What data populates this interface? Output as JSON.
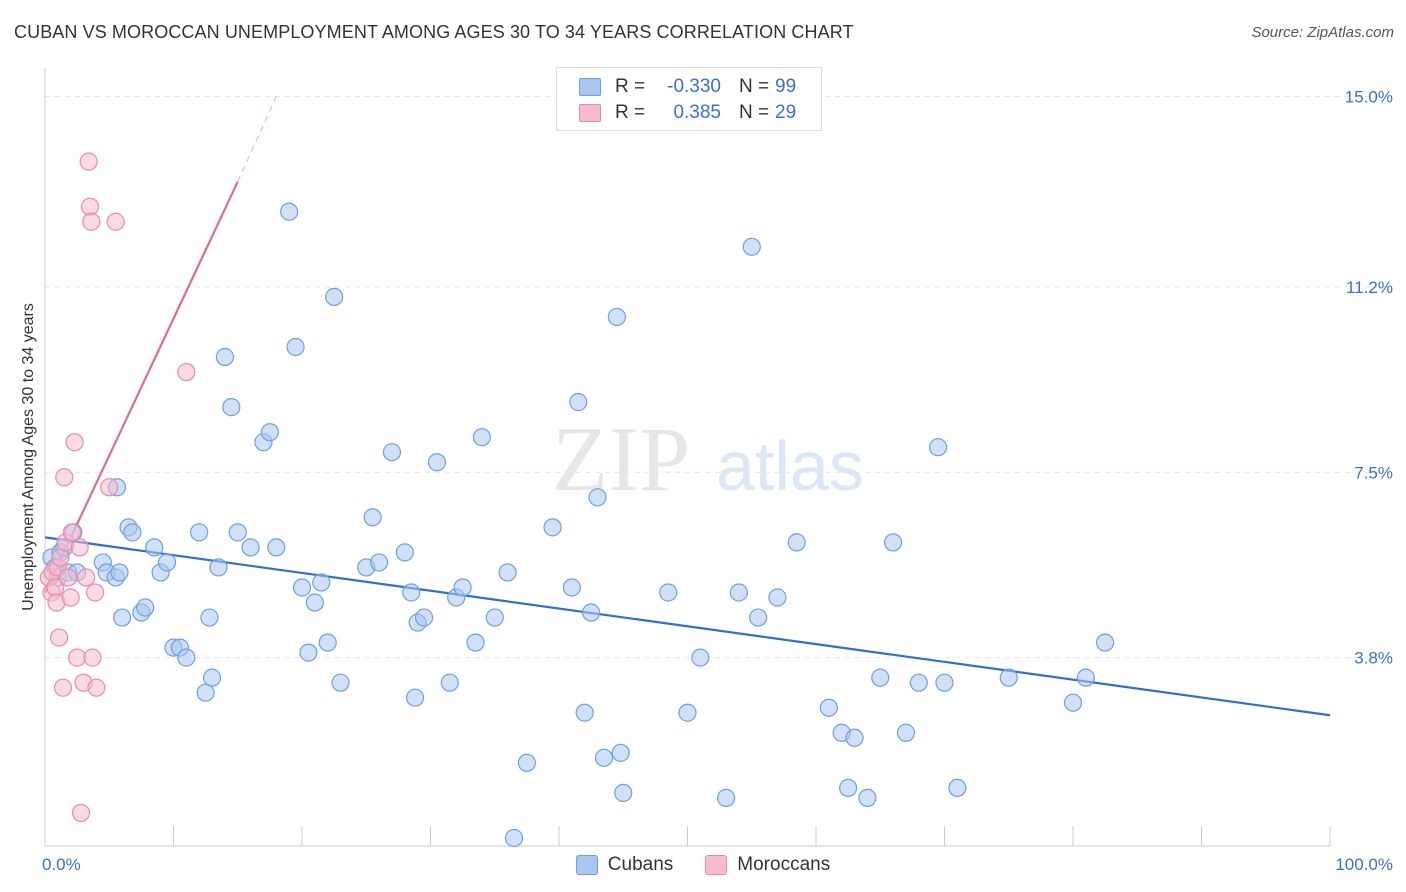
{
  "header": {
    "title": "CUBAN VS MOROCCAN UNEMPLOYMENT AMONG AGES 30 TO 34 YEARS CORRELATION CHART",
    "source": "Source: ZipAtlas.com"
  },
  "watermark": {
    "part1": "ZIP",
    "part2": "atlas"
  },
  "legend": {
    "r_label": "R =",
    "n_label": "N =",
    "rows": [
      {
        "series": "Cubans",
        "r": "-0.330",
        "n": "99",
        "color": "#a9c6f0"
      },
      {
        "series": "Moroccans",
        "r": "0.385",
        "n": "29",
        "color": "#f6bccd"
      }
    ]
  },
  "chart_data": {
    "type": "scatter",
    "title": "CUBAN VS MOROCCAN UNEMPLOYMENT AMONG AGES 30 TO 34 YEARS CORRELATION CHART",
    "xlabel": "",
    "ylabel": "Unemployment Among Ages 30 to 34 years",
    "xlim": [
      0,
      100
    ],
    "ylim": [
      0,
      15.5
    ],
    "x_tick_labels": [
      "0.0%",
      "100.0%"
    ],
    "y_ticks": [
      {
        "value": 3.8,
        "label": "3.8%"
      },
      {
        "value": 7.5,
        "label": "7.5%"
      },
      {
        "value": 11.2,
        "label": "11.2%"
      },
      {
        "value": 15.0,
        "label": "15.0%"
      }
    ],
    "grid": true,
    "legend_position": "top-center",
    "series": [
      {
        "name": "Cubans",
        "color": "#a9c6f0",
        "stroke": "#6f9ee0",
        "trend": {
          "x": [
            0,
            100
          ],
          "y": [
            6.2,
            2.65
          ],
          "color": "#2f6fd1"
        },
        "points": [
          [
            0.5,
            5.8
          ],
          [
            0.8,
            5.6
          ],
          [
            1.0,
            5.4
          ],
          [
            1.2,
            5.9
          ],
          [
            1.5,
            6.0
          ],
          [
            1.8,
            5.5
          ],
          [
            2.2,
            6.3
          ],
          [
            2.5,
            5.5
          ],
          [
            4.5,
            5.7
          ],
          [
            4.8,
            5.5
          ],
          [
            5.5,
            5.4
          ],
          [
            5.8,
            5.5
          ],
          [
            5.6,
            7.2
          ],
          [
            6.0,
            4.6
          ],
          [
            6.5,
            6.4
          ],
          [
            6.8,
            6.3
          ],
          [
            7.5,
            4.7
          ],
          [
            7.8,
            4.8
          ],
          [
            8.5,
            6.0
          ],
          [
            9.0,
            5.5
          ],
          [
            9.5,
            5.7
          ],
          [
            10.0,
            4.0
          ],
          [
            10.5,
            4.0
          ],
          [
            11.0,
            3.8
          ],
          [
            12.0,
            6.3
          ],
          [
            12.5,
            3.1
          ],
          [
            12.8,
            4.6
          ],
          [
            13.0,
            3.4
          ],
          [
            13.5,
            5.6
          ],
          [
            14.0,
            9.8
          ],
          [
            14.5,
            8.8
          ],
          [
            15.0,
            6.3
          ],
          [
            16.0,
            6.0
          ],
          [
            17.0,
            8.1
          ],
          [
            17.5,
            8.3
          ],
          [
            18.0,
            6.0
          ],
          [
            19.0,
            12.7
          ],
          [
            19.5,
            10.0
          ],
          [
            20.0,
            5.2
          ],
          [
            20.5,
            3.9
          ],
          [
            21.0,
            4.9
          ],
          [
            21.5,
            5.3
          ],
          [
            22.0,
            4.1
          ],
          [
            22.5,
            11.0
          ],
          [
            23.0,
            3.3
          ],
          [
            25.0,
            5.6
          ],
          [
            25.5,
            6.6
          ],
          [
            26.0,
            5.7
          ],
          [
            27.0,
            7.9
          ],
          [
            28.0,
            5.9
          ],
          [
            28.5,
            5.1
          ],
          [
            28.8,
            3.0
          ],
          [
            29.0,
            4.5
          ],
          [
            29.5,
            4.6
          ],
          [
            30.5,
            7.7
          ],
          [
            31.5,
            3.3
          ],
          [
            32.0,
            5.0
          ],
          [
            32.5,
            5.2
          ],
          [
            33.5,
            4.1
          ],
          [
            34.0,
            8.2
          ],
          [
            35.0,
            4.6
          ],
          [
            36.0,
            5.5
          ],
          [
            37.5,
            1.7
          ],
          [
            39.5,
            6.4
          ],
          [
            41.0,
            5.2
          ],
          [
            41.5,
            8.9
          ],
          [
            42.0,
            2.7
          ],
          [
            42.5,
            4.7
          ],
          [
            43.0,
            7.0
          ],
          [
            43.5,
            1.8
          ],
          [
            44.5,
            10.6
          ],
          [
            44.8,
            1.9
          ],
          [
            45.0,
            1.1
          ],
          [
            48.5,
            5.1
          ],
          [
            50.0,
            2.7
          ],
          [
            51.0,
            3.8
          ],
          [
            53.0,
            1.0
          ],
          [
            54.0,
            5.1
          ],
          [
            55.0,
            12.0
          ],
          [
            55.5,
            4.6
          ],
          [
            57.0,
            5.0
          ],
          [
            58.5,
            6.1
          ],
          [
            61.0,
            2.8
          ],
          [
            62.0,
            2.3
          ],
          [
            62.5,
            1.2
          ],
          [
            63.0,
            2.2
          ],
          [
            64.0,
            1.0
          ],
          [
            65.0,
            3.4
          ],
          [
            66.0,
            6.1
          ],
          [
            67.0,
            2.3
          ],
          [
            68.0,
            3.3
          ],
          [
            69.5,
            8.0
          ],
          [
            70.0,
            3.3
          ],
          [
            71.0,
            1.2
          ],
          [
            75.0,
            3.4
          ],
          [
            80.0,
            2.9
          ],
          [
            81.0,
            3.4
          ],
          [
            82.5,
            4.1
          ],
          [
            36.5,
            0.2
          ]
        ]
      },
      {
        "name": "Moroccans",
        "color": "#f6bccd",
        "stroke": "#e98aa8",
        "trend": {
          "x": [
            0,
            15
          ],
          "y": [
            5.1,
            13.3
          ],
          "dashed_to": [
            18,
            15.0
          ],
          "color": "#e06a94"
        },
        "points": [
          [
            0.3,
            5.4
          ],
          [
            0.5,
            5.1
          ],
          [
            0.6,
            5.5
          ],
          [
            0.8,
            5.2
          ],
          [
            0.9,
            4.9
          ],
          [
            1.0,
            5.6
          ],
          [
            1.1,
            4.2
          ],
          [
            1.2,
            5.8
          ],
          [
            1.4,
            3.2
          ],
          [
            1.5,
            7.4
          ],
          [
            1.6,
            6.1
          ],
          [
            1.8,
            5.4
          ],
          [
            2.0,
            5.0
          ],
          [
            2.1,
            6.3
          ],
          [
            2.3,
            8.1
          ],
          [
            2.5,
            3.8
          ],
          [
            2.7,
            6.0
          ],
          [
            2.8,
            0.7
          ],
          [
            3.0,
            3.3
          ],
          [
            3.2,
            5.4
          ],
          [
            3.4,
            13.7
          ],
          [
            3.5,
            12.8
          ],
          [
            3.6,
            12.5
          ],
          [
            3.7,
            3.8
          ],
          [
            3.9,
            5.1
          ],
          [
            4.0,
            3.2
          ],
          [
            5.0,
            7.2
          ],
          [
            5.5,
            12.5
          ],
          [
            11.0,
            9.5
          ]
        ]
      }
    ]
  },
  "bottom_legend": [
    {
      "label": "Cubans",
      "color": "#a9c6f0"
    },
    {
      "label": "Moroccans",
      "color": "#f6bccd"
    }
  ]
}
